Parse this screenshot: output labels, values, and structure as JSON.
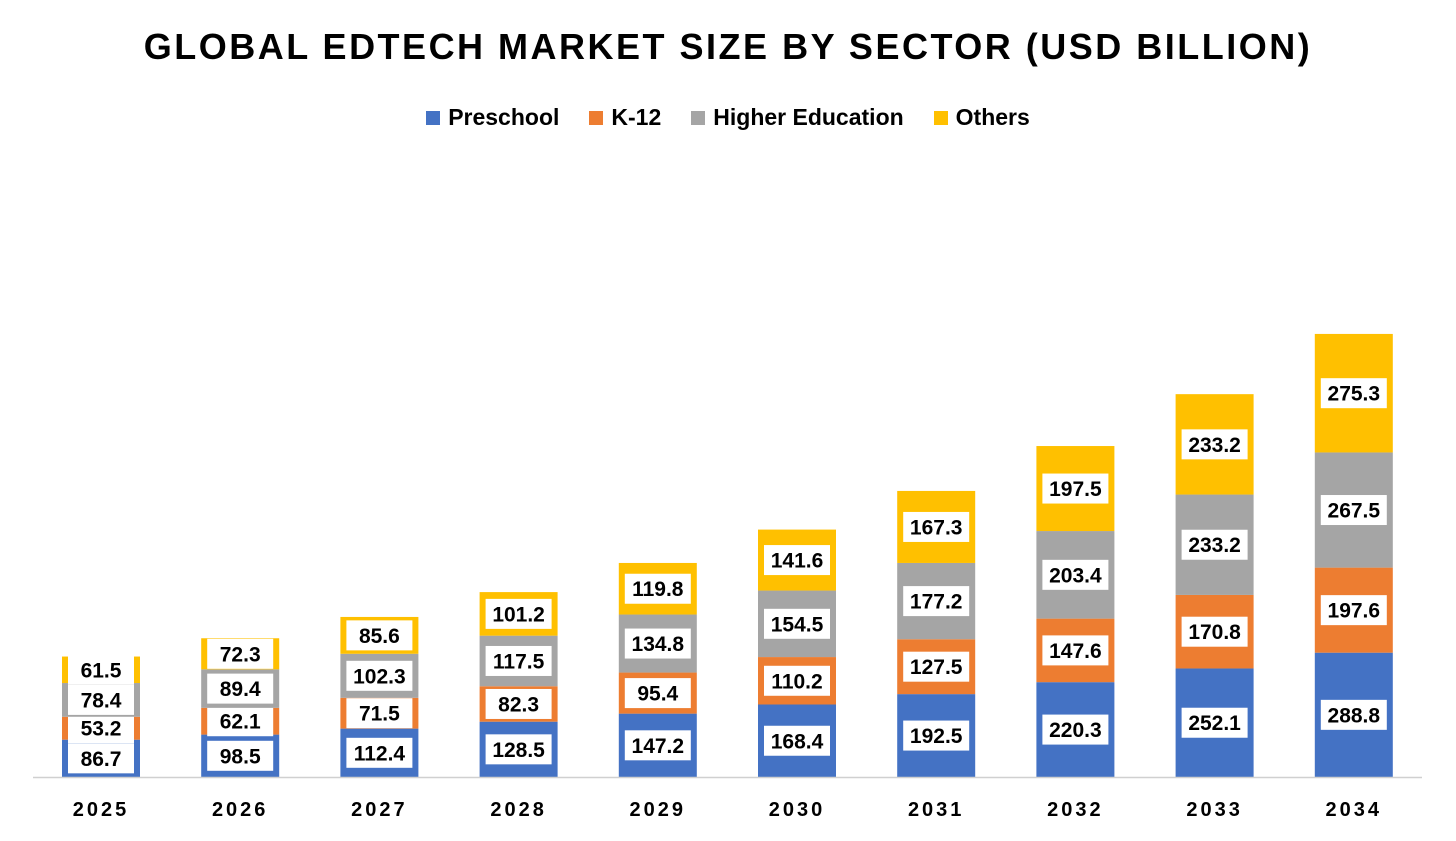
{
  "chart_data": {
    "type": "bar",
    "stacked": true,
    "title": "GLOBAL EDTECH MARKET SIZE BY SECTOR (USD BILLION)",
    "categories": [
      "2025",
      "2026",
      "2027",
      "2028",
      "2029",
      "2030",
      "2031",
      "2032",
      "2033",
      "2034"
    ],
    "series": [
      {
        "name": "Preschool",
        "color": "#4472C4",
        "values": [
          86.7,
          98.5,
          112.4,
          128.5,
          147.2,
          168.4,
          192.5,
          220.3,
          252.1,
          288.8
        ],
        "labels": [
          "86.7",
          "98.5",
          "112.4",
          "128.5",
          "147.2",
          "168.4",
          "192.5",
          "220.3",
          "252.1",
          "288.8"
        ]
      },
      {
        "name": "K-12",
        "color": "#ED7D31",
        "values": [
          53.2,
          62.1,
          71.5,
          82.3,
          95.4,
          110.2,
          127.5,
          147.6,
          170.8,
          197.6
        ],
        "labels": [
          "53.2",
          "62.1",
          "71.5",
          "82.3",
          "95.4",
          "110.2",
          "127.5",
          "147.6",
          "170.8",
          "197.6"
        ]
      },
      {
        "name": "Higher Education",
        "color": "#A5A5A5",
        "values": [
          78.4,
          89.4,
          102.3,
          117.5,
          134.8,
          154.5,
          177.2,
          203.4,
          233.2,
          267.5
        ],
        "labels": [
          "78.4",
          "89.4",
          "102.3",
          "117.5",
          "134.8",
          "154.5",
          "177.2",
          "203.4",
          "233.2",
          "267.5"
        ]
      },
      {
        "name": "Others",
        "color": "#FFC000",
        "values": [
          61.5,
          72.3,
          85.6,
          101.2,
          119.8,
          141.6,
          167.3,
          197.5,
          233.2,
          275.3
        ],
        "labels": [
          "61.5",
          "72.3",
          "85.6",
          "101.2",
          "119.8",
          "141.6",
          "167.3",
          "197.5",
          "233.2",
          "275.3"
        ]
      }
    ],
    "xlabel": "",
    "ylabel": "",
    "legend": "top-center",
    "grid": false
  }
}
